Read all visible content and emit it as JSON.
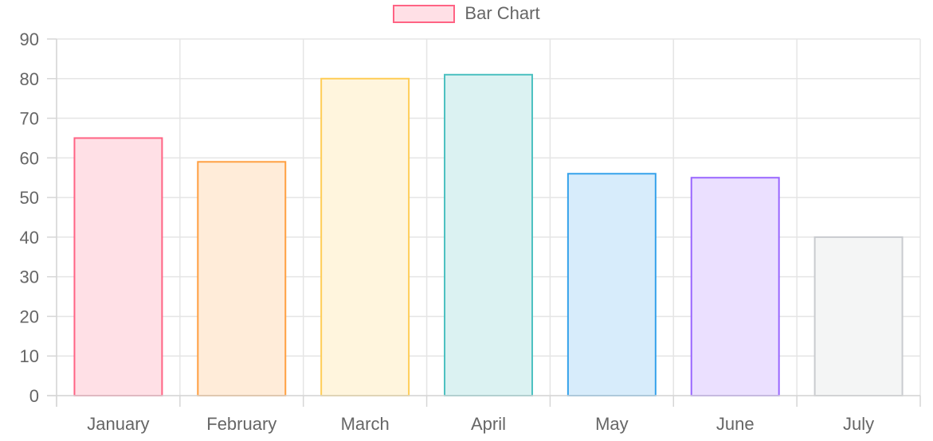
{
  "chart_data": {
    "type": "bar",
    "categories": [
      "January",
      "February",
      "March",
      "April",
      "May",
      "June",
      "July"
    ],
    "series": [
      {
        "name": "Bar Chart",
        "values": [
          65,
          59,
          80,
          81,
          56,
          55,
          40
        ]
      }
    ],
    "title": "",
    "xlabel": "",
    "ylabel": "",
    "ylim": [
      0,
      90
    ],
    "yticks": [
      "0",
      "10",
      "20",
      "30",
      "40",
      "50",
      "60",
      "70",
      "80",
      "90"
    ],
    "grid": true,
    "legend_position": "top-center",
    "bar_fill_colors": [
      "#ffe0e6",
      "#ffecd9",
      "#fff5dd",
      "#dbf2f2",
      "#d7ecfb",
      "#ebe0ff",
      "#f4f5f5"
    ],
    "bar_border_colors": [
      "#ff6384",
      "#ff9f40",
      "#ffcd56",
      "#4bc0c0",
      "#36a2eb",
      "#9966ff",
      "#c9cbcf"
    ],
    "legend_swatch_fill": "#ffe0e6",
    "legend_swatch_border": "#ff6384"
  }
}
